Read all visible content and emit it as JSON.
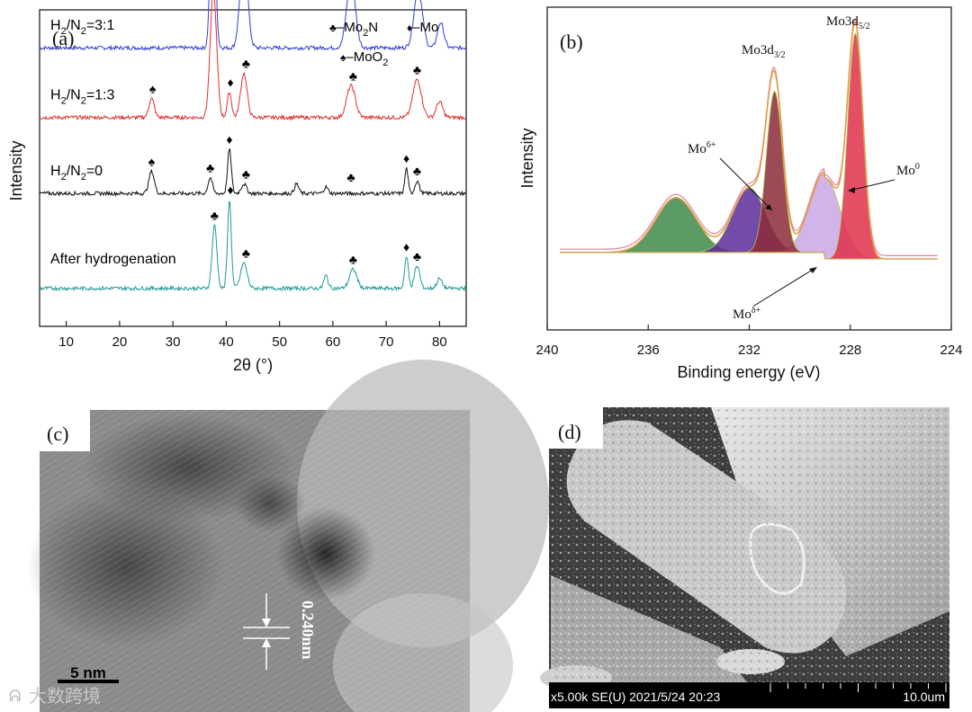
{
  "chart_data": [
    {
      "panel": "(a)",
      "type": "line",
      "xlabel": "2θ (°)",
      "ylabel": "Intensity",
      "xlim": [
        5,
        85
      ],
      "xticks": [
        10,
        20,
        30,
        40,
        50,
        60,
        70,
        80
      ],
      "legend": [
        {
          "symbol": "♣",
          "text": "–Mo",
          "sub": "2",
          "text2": "N"
        },
        {
          "symbol": "♦",
          "text": "–Mo",
          "sub": "",
          "text2": ""
        },
        {
          "symbol": "♠",
          "text": "–MoO",
          "sub": "2",
          "text2": ""
        }
      ],
      "series": [
        {
          "name": "H2/N2=3:1",
          "label": [
            "H",
            "2",
            "/N",
            "2",
            "=3:1"
          ],
          "color": "#2f3fd0",
          "baseline": 0.88,
          "peaks": [
            [
              37.5,
              0.6,
              0.45
            ],
            [
              43.3,
              0.3,
              0.7
            ],
            [
              63.4,
              0.22,
              0.8
            ],
            [
              76.0,
              0.18,
              0.8
            ],
            [
              80.2,
              0.08,
              0.6
            ]
          ],
          "markers": [
            {
              "x": 37.5,
              "s": "♣"
            },
            {
              "x": 43.5,
              "s": "♣"
            },
            {
              "x": 63.6,
              "s": "♣"
            },
            {
              "x": 75.8,
              "s": "♣"
            }
          ]
        },
        {
          "name": "H2/N2=1:3",
          "label": [
            "H",
            "2",
            "/N",
            "2",
            "=1:3"
          ],
          "color": "#e03030",
          "baseline": 0.66,
          "peaks": [
            [
              26.0,
              0.06,
              0.5
            ],
            [
              37.6,
              0.4,
              0.6
            ],
            [
              40.6,
              0.08,
              0.4
            ],
            [
              43.3,
              0.14,
              0.6
            ],
            [
              63.4,
              0.1,
              0.8
            ],
            [
              75.8,
              0.12,
              0.8
            ],
            [
              80.0,
              0.05,
              0.6
            ]
          ],
          "markers": [
            {
              "x": 26.2,
              "s": "♠"
            },
            {
              "x": 37.6,
              "s": "♣"
            },
            {
              "x": 40.8,
              "s": "♦"
            },
            {
              "x": 43.7,
              "s": "♣"
            },
            {
              "x": 63.8,
              "s": "♣"
            },
            {
              "x": 75.8,
              "s": "♣"
            }
          ]
        },
        {
          "name": "H2/N2=0",
          "label": [
            "H",
            "2",
            "/N",
            "2",
            "=0"
          ],
          "color": "#111111",
          "baseline": 0.42,
          "peaks": [
            [
              26.0,
              0.07,
              0.5
            ],
            [
              37.0,
              0.05,
              0.4
            ],
            [
              40.6,
              0.14,
              0.35
            ],
            [
              43.3,
              0.03,
              0.5
            ],
            [
              53.2,
              0.03,
              0.4
            ],
            [
              58.7,
              0.02,
              0.4
            ],
            [
              73.8,
              0.08,
              0.3
            ],
            [
              75.8,
              0.04,
              0.4
            ]
          ],
          "markers": [
            {
              "x": 26.0,
              "s": "♠"
            },
            {
              "x": 37.0,
              "s": "♣"
            },
            {
              "x": 40.6,
              "s": "♦"
            },
            {
              "x": 43.7,
              "s": "♣"
            },
            {
              "x": 63.4,
              "s": "♣"
            },
            {
              "x": 73.8,
              "s": "♦"
            },
            {
              "x": 75.8,
              "s": "♣"
            }
          ]
        },
        {
          "name": "After hydrogenation",
          "label": [
            "After hydrogenation",
            "",
            "",
            "",
            ""
          ],
          "color": "#1f9a96",
          "baseline": 0.12,
          "peaks": [
            [
              37.8,
              0.2,
              0.45
            ],
            [
              40.6,
              0.28,
              0.35
            ],
            [
              43.3,
              0.08,
              0.6
            ],
            [
              58.7,
              0.04,
              0.4
            ],
            [
              63.8,
              0.06,
              0.7
            ],
            [
              73.8,
              0.1,
              0.35
            ],
            [
              75.8,
              0.07,
              0.5
            ],
            [
              80.0,
              0.03,
              0.5
            ]
          ],
          "markers": [
            {
              "x": 37.8,
              "s": "♣"
            },
            {
              "x": 40.8,
              "s": "♦"
            },
            {
              "x": 43.7,
              "s": "♣"
            },
            {
              "x": 63.8,
              "s": "♣"
            },
            {
              "x": 73.8,
              "s": "♦"
            },
            {
              "x": 75.8,
              "s": "♣"
            }
          ]
        }
      ]
    },
    {
      "panel": "(b)",
      "type": "area",
      "xlabel": "Binding energy (eV)",
      "ylabel": "Intensity",
      "xlim": [
        240,
        224
      ],
      "xticks": [
        240,
        236,
        232,
        228,
        224
      ],
      "components": [
        {
          "name": "Mo6+ broad",
          "center": 234.9,
          "height": 0.17,
          "width": 0.8,
          "color": "#3f8a4a"
        },
        {
          "name": "Mo6+",
          "center": 232.0,
          "height": 0.2,
          "width": 0.65,
          "color": "#5a2c9a"
        },
        {
          "name": "Moδ+",
          "center": 229.0,
          "height": 0.25,
          "width": 0.6,
          "color": "#c9a8e6"
        },
        {
          "name": "Mo3d3/2 Mo0",
          "center": 231.0,
          "height": 0.5,
          "width": 0.32,
          "color": "#8c2a3a"
        },
        {
          "name": "Mo3d5/2 Mo0",
          "center": 227.8,
          "height": 0.7,
          "width": 0.3,
          "color": "#e0304a"
        }
      ],
      "annotations": [
        {
          "base": "Mo3d",
          "sub": "3/2",
          "sup": ""
        },
        {
          "base": "Mo3d",
          "sub": "5/2",
          "sup": ""
        },
        {
          "base": "Mo",
          "sub": "",
          "sup": "6+"
        },
        {
          "base": "Mo",
          "sub": "",
          "sup": "0"
        },
        {
          "base": "Mo",
          "sub": "",
          "sup": "δ+"
        }
      ]
    }
  ],
  "panel_c": {
    "label": "(c)",
    "scalebar": "5 nm",
    "spacing": "0.240nm"
  },
  "panel_d": {
    "label": "(d)",
    "info": "x5.00k SE(U) 2021/5/24 20:23",
    "scale": "10.0um"
  },
  "watermark": "大数跨境"
}
